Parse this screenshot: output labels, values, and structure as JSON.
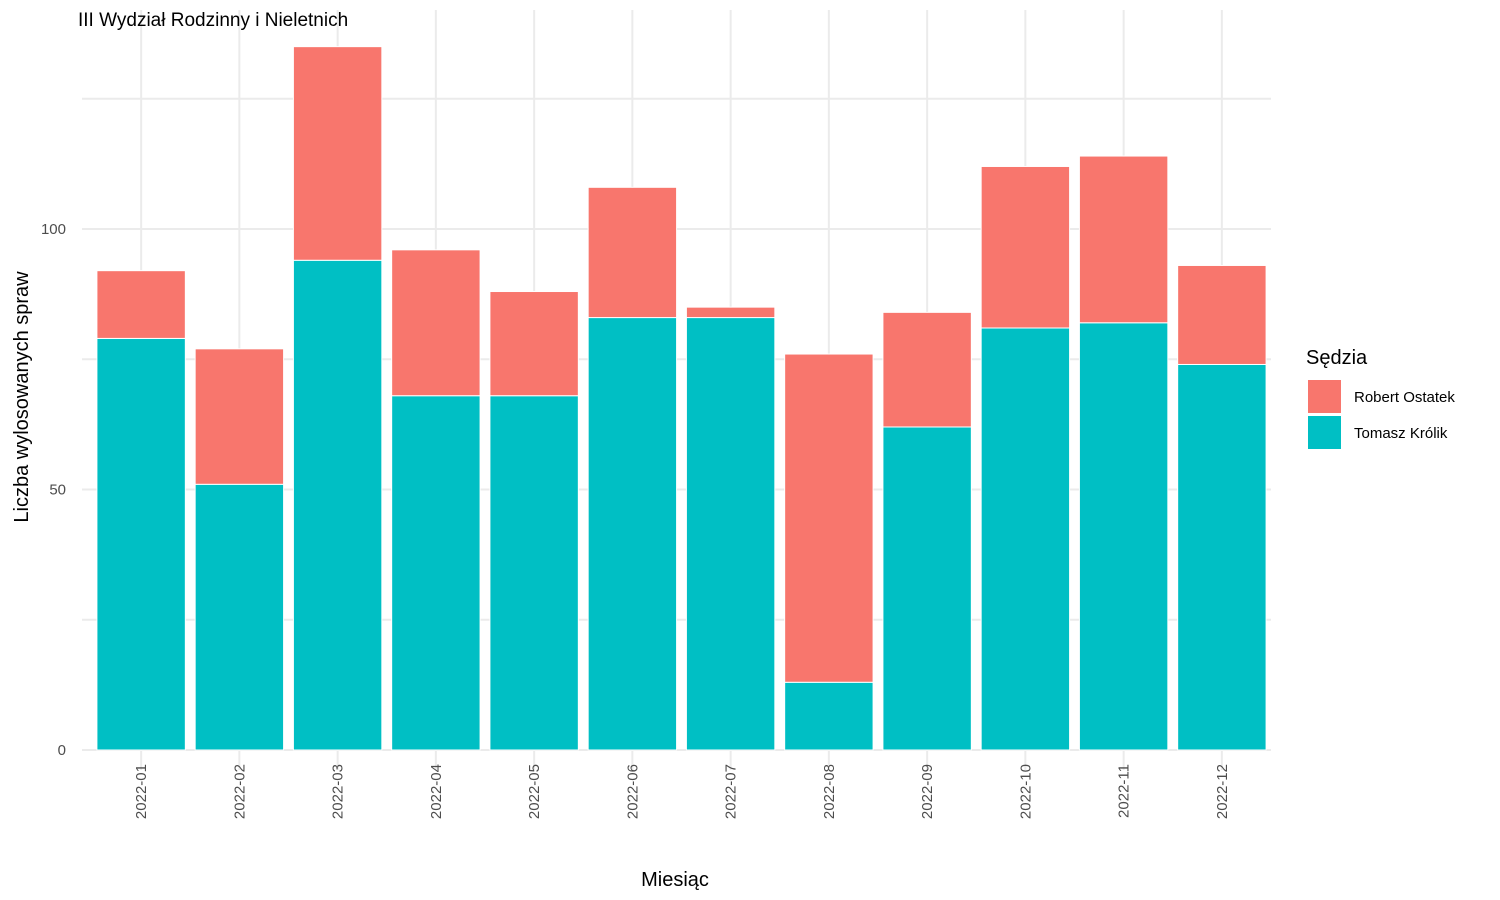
{
  "chart_data": {
    "type": "bar",
    "stacked": true,
    "title": "III Wydział Rodzinny i Nieletnich",
    "xlabel": "Miesiąc",
    "ylabel": "Liczba wylosowanych spraw",
    "ylim": [
      0,
      140
    ],
    "yticks": [
      0,
      50,
      100
    ],
    "grid": true,
    "categories": [
      "2022-01",
      "2022-02",
      "2022-03",
      "2022-04",
      "2022-05",
      "2022-06",
      "2022-07",
      "2022-08",
      "2022-09",
      "2022-10",
      "2022-11",
      "2022-12"
    ],
    "series": [
      {
        "name": "Tomasz Królik",
        "color": "#00BFC4",
        "values": [
          79,
          51,
          94,
          68,
          68,
          83,
          83,
          13,
          62,
          81,
          82,
          74
        ]
      },
      {
        "name": "Robert Ostatek",
        "color": "#F8766D",
        "values": [
          13,
          26,
          41,
          28,
          20,
          25,
          2,
          63,
          22,
          31,
          32,
          19
        ]
      }
    ],
    "legend": {
      "title": "Sędzia",
      "placement": "right",
      "items": [
        {
          "label": "Robert Ostatek",
          "color": "#F8766D"
        },
        {
          "label": "Tomasz Królik",
          "color": "#00BFC4"
        }
      ]
    }
  }
}
